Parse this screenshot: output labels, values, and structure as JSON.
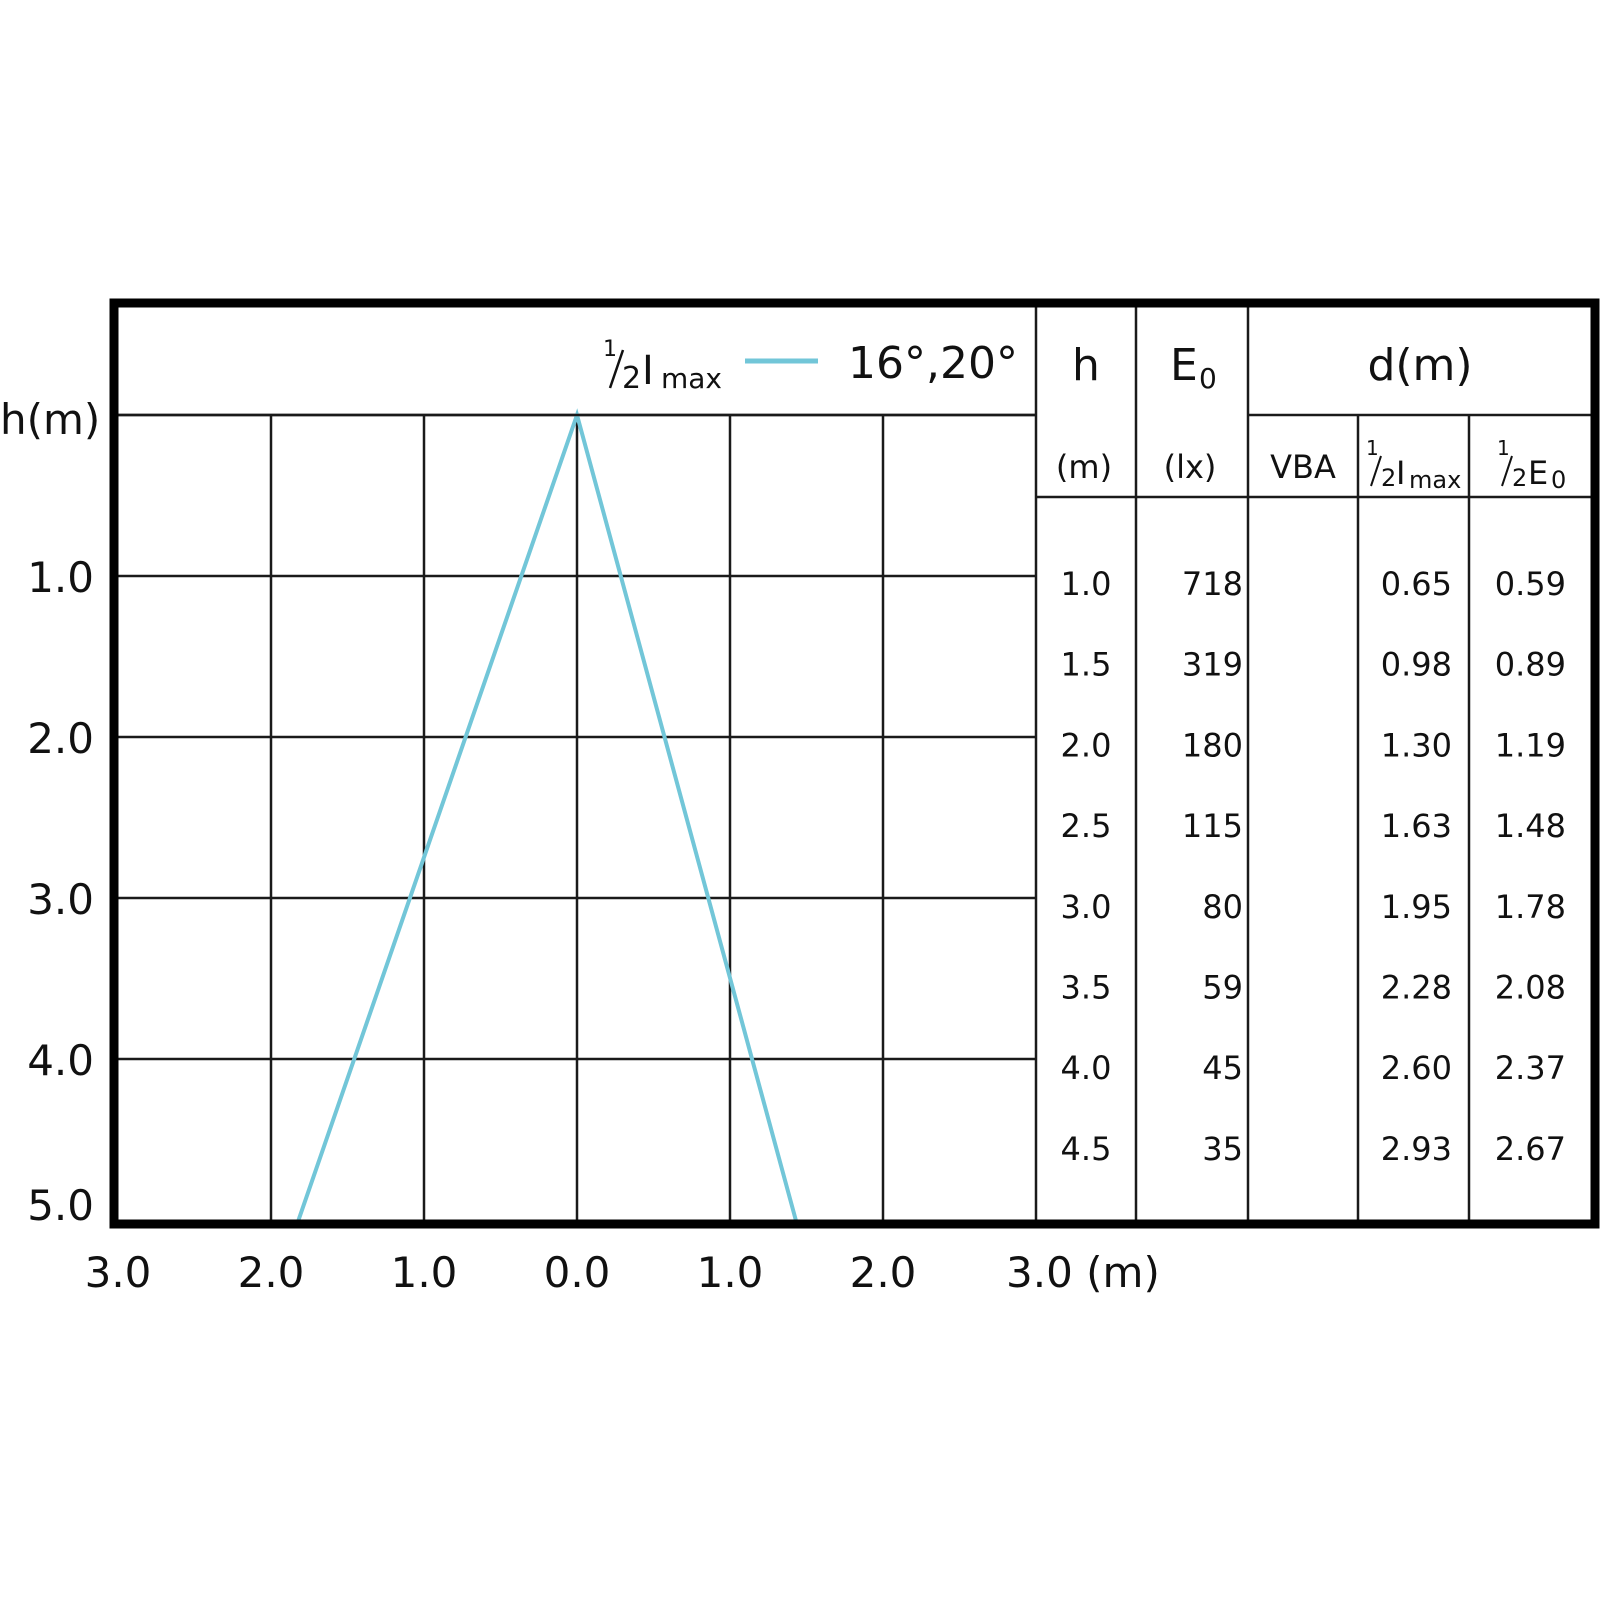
{
  "chart_data": {
    "type": "line",
    "legend": {
      "label_frac_num": "1",
      "label_frac_den": "2",
      "label_main": "I",
      "label_sub": "max",
      "angles": "16°,20°",
      "color": "#72c6d8"
    },
    "y_axis": {
      "label": "h(m)",
      "ticks": [
        "1.0",
        "2.0",
        "3.0",
        "4.0",
        "5.0"
      ],
      "range": [
        0.0,
        5.0
      ],
      "inverted": true
    },
    "x_axis": {
      "ticks": [
        "3.0",
        "2.0",
        "1.0",
        "0.0",
        "1.0",
        "2.0",
        "3.0 (m)"
      ],
      "range": [
        -3.0,
        3.0
      ]
    },
    "grid": true,
    "series": [
      {
        "x": [
          -1.82,
          0.0,
          1.43
        ],
        "y": [
          5.0,
          0.0,
          5.0
        ]
      }
    ],
    "table": {
      "headers": {
        "h": "h",
        "h_unit": "(m)",
        "e0_main": "E",
        "e0_sub": "0",
        "e0_unit": "(lx)",
        "d": "d(m)",
        "vba": "VBA",
        "col_imax_num": "1",
        "col_imax_den": "2",
        "col_imax_main": "I",
        "col_imax_sub": "max",
        "col_e0_num": "1",
        "col_e0_den": "2",
        "col_e0_main": "E",
        "col_e0_sub": "0"
      },
      "rows": [
        {
          "h": "1.0",
          "e0": "718",
          "vba": "",
          "imax": "0.65",
          "half_e0": "0.59"
        },
        {
          "h": "1.5",
          "e0": "319",
          "vba": "",
          "imax": "0.98",
          "half_e0": "0.89"
        },
        {
          "h": "2.0",
          "e0": "180",
          "vba": "",
          "imax": "1.30",
          "half_e0": "1.19"
        },
        {
          "h": "2.5",
          "e0": "115",
          "vba": "",
          "imax": "1.63",
          "half_e0": "1.48"
        },
        {
          "h": "3.0",
          "e0": "80",
          "vba": "",
          "imax": "1.95",
          "half_e0": "1.78"
        },
        {
          "h": "3.5",
          "e0": "59",
          "vba": "",
          "imax": "2.28",
          "half_e0": "2.08"
        },
        {
          "h": "4.0",
          "e0": "45",
          "vba": "",
          "imax": "2.60",
          "half_e0": "2.37"
        },
        {
          "h": "4.5",
          "e0": "35",
          "vba": "",
          "imax": "2.93",
          "half_e0": "2.67"
        }
      ]
    }
  }
}
